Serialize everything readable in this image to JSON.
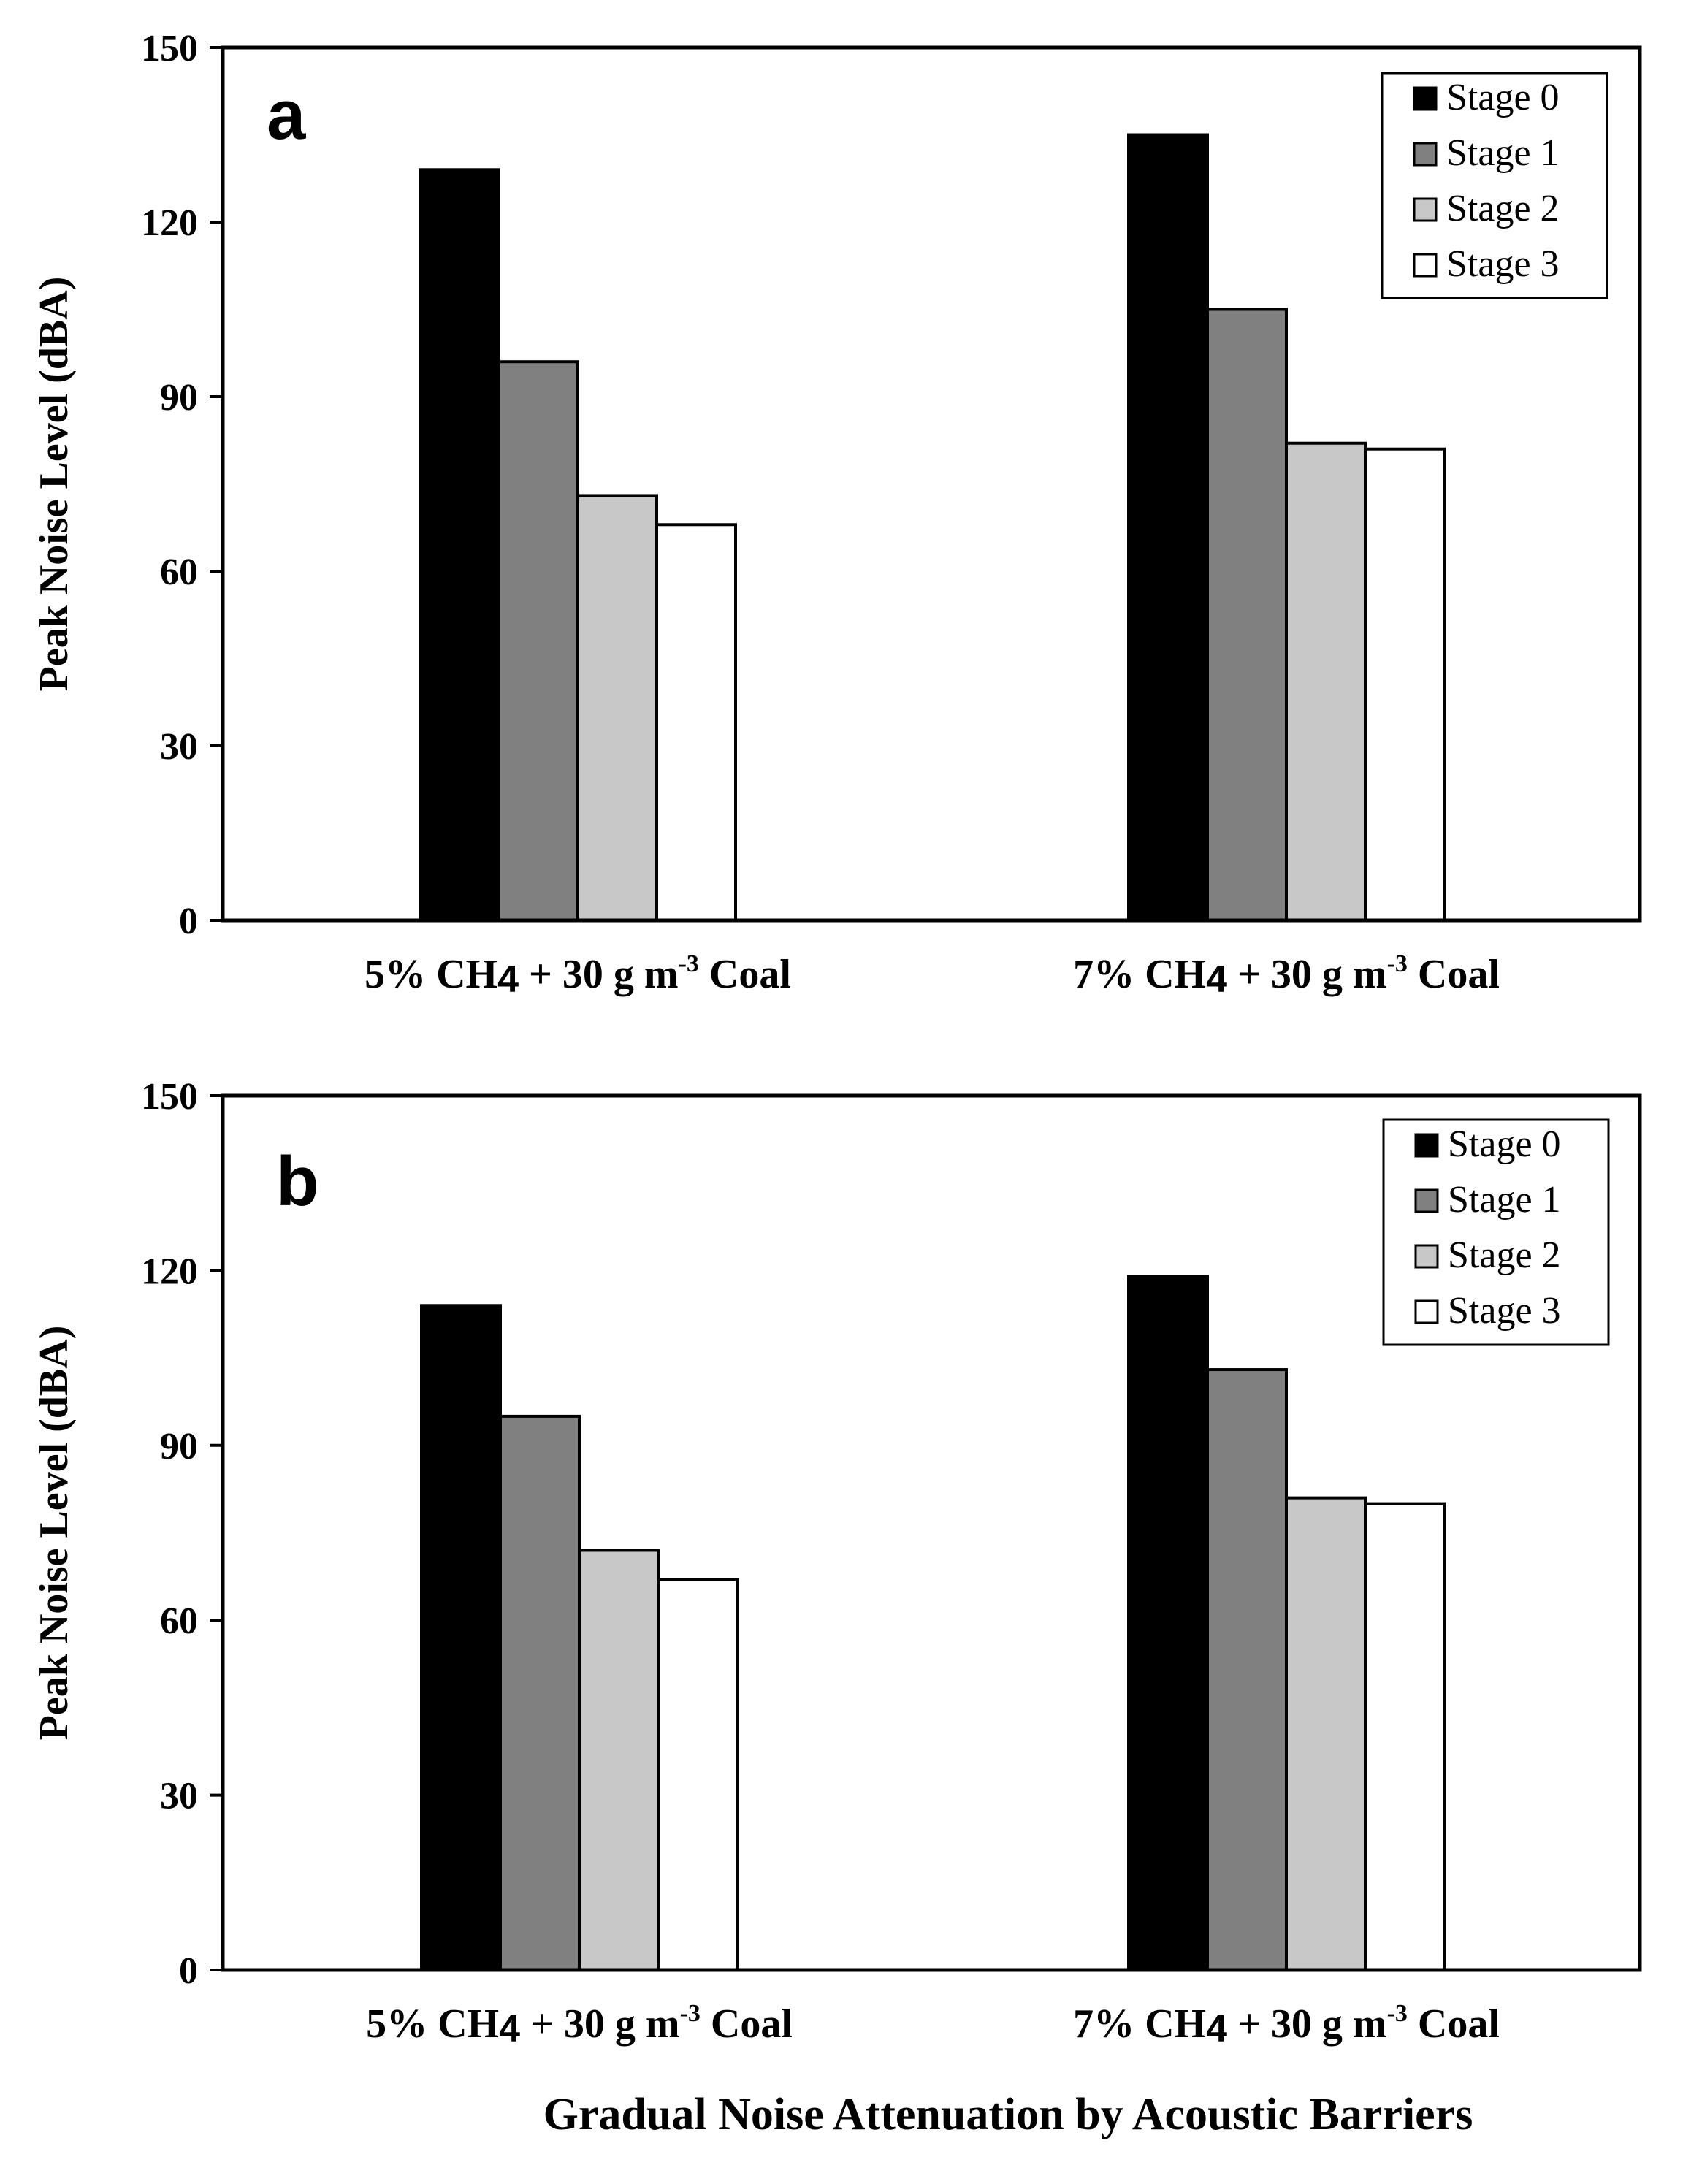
{
  "chart_data": [
    {
      "type": "bar",
      "panel_label": "a",
      "categories": [
        {
          "prefix": "5% CH",
          "sub": "4",
          "middle": " + 30 g m",
          "sup": "-3",
          "suffix": " Coal"
        },
        {
          "prefix": "7% CH",
          "sub": "4",
          "middle": " + 30 g m",
          "sup": "-3",
          "suffix": " Coal"
        }
      ],
      "series": [
        {
          "name": "Stage 0",
          "color": "#000000",
          "values": [
            129,
            135
          ]
        },
        {
          "name": "Stage 1",
          "color": "#808080",
          "values": [
            96,
            105
          ]
        },
        {
          "name": "Stage 2",
          "color": "#c8c8c8",
          "values": [
            73,
            82
          ]
        },
        {
          "name": "Stage 3",
          "color": "#ffffff",
          "values": [
            68,
            81
          ]
        }
      ],
      "ylabel": "Peak Noise Level (dBA)",
      "ylim": [
        0,
        150
      ],
      "yticks": [
        0,
        30,
        60,
        90,
        120,
        150
      ],
      "legend_position": "top-right",
      "grid": false
    },
    {
      "type": "bar",
      "panel_label": "b",
      "categories": [
        {
          "prefix": "5% CH",
          "sub": "4",
          "middle": " + 30 g m",
          "sup": "-3",
          "suffix": " Coal"
        },
        {
          "prefix": "7% CH",
          "sub": "4",
          "middle": " + 30 g m",
          "sup": "-3",
          "suffix": " Coal"
        }
      ],
      "series": [
        {
          "name": "Stage 0",
          "color": "#000000",
          "values": [
            114,
            119
          ]
        },
        {
          "name": "Stage 1",
          "color": "#808080",
          "values": [
            95,
            103
          ]
        },
        {
          "name": "Stage 2",
          "color": "#c8c8c8",
          "values": [
            72,
            81
          ]
        },
        {
          "name": "Stage 3",
          "color": "#ffffff",
          "values": [
            67,
            80
          ]
        }
      ],
      "ylabel": "Peak Noise Level (dBA)",
      "ylim": [
        0,
        150
      ],
      "yticks": [
        0,
        30,
        60,
        90,
        120,
        150
      ],
      "legend_position": "top-right",
      "grid": false
    }
  ],
  "xtitle": "Gradual Noise Attenuation by Acoustic Barriers"
}
